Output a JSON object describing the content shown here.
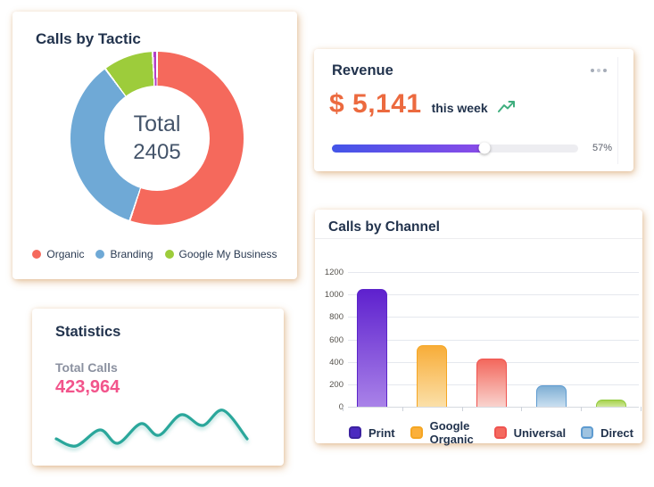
{
  "cards": {
    "tactic": {
      "title": "Calls by Tactic",
      "center_label": "Total",
      "center_value": "2405"
    },
    "revenue": {
      "title": "Revenue",
      "menu_icon": "ellipsis-menu",
      "amount": "$ 5,141",
      "period": "this week",
      "trend_icon": "trending-up",
      "progress_label": "57%",
      "progress_percent": 57,
      "fill_percent": 62,
      "progress_gradient": [
        "#4355E8",
        "#8A4BE8"
      ]
    },
    "statistics": {
      "title": "Statistics",
      "metric_label": "Total Calls",
      "metric_value": "423,964",
      "value_color": "#F2548B",
      "line_color": "#2AA79B"
    },
    "channel": {
      "title": "Calls by Channel"
    }
  },
  "chart_data": [
    {
      "id": "calls_by_tactic",
      "type": "pie",
      "donut": true,
      "title": "Calls by Tactic",
      "center_label": "Total",
      "total": 2405,
      "legend_position": "bottom",
      "slices": [
        {
          "label": "Organic",
          "value": 1325,
          "color": "#F5695C"
        },
        {
          "label": "Branding",
          "value": 835,
          "color": "#6FA9D6"
        },
        {
          "label": "Google My Business",
          "value": 225,
          "color": "#9DCC3B"
        },
        {
          "label": "",
          "value": 20,
          "color": "#B23FC6"
        }
      ]
    },
    {
      "id": "calls_by_channel",
      "type": "bar",
      "title": "Calls by Channel",
      "categories": [
        "Print",
        "Google Organic",
        "Universal",
        "Direct",
        ""
      ],
      "values": [
        1050,
        550,
        430,
        190,
        60
      ],
      "ylim": [
        0,
        1200
      ],
      "ytick_step": 200,
      "grid": true,
      "legend_position": "bottom",
      "bar_styles": [
        {
          "top": "#5E21CE",
          "bottom": "#A982E8",
          "border": "#5B24C9"
        },
        {
          "top": "#F8AD39",
          "bottom": "#FBE0A9",
          "border": "#F5A623"
        },
        {
          "top": "#F3685D",
          "bottom": "#F9D3CE",
          "border": "#EF5350"
        },
        {
          "top": "#7FAFD4",
          "bottom": "#CADFF0",
          "border": "#5E9BD0"
        },
        {
          "top": "#A8D24F",
          "bottom": "#CFE89A",
          "border": "#8FC93A"
        }
      ],
      "legend": [
        {
          "label": "Print",
          "fill": "#4B2AC0",
          "border": "#3C22A0"
        },
        {
          "label": "Google Organic",
          "fill": "#FBB03B",
          "border": "#F5A623"
        },
        {
          "label": "Universal",
          "fill": "#F4695E",
          "border": "#EF5350"
        },
        {
          "label": "Direct",
          "fill": "#9FC3E0",
          "border": "#5E9BD0"
        }
      ]
    },
    {
      "id": "statistics_sparkline",
      "type": "line",
      "color": "#2AA79B",
      "points": [
        [
          7,
          42
        ],
        [
          29,
          50
        ],
        [
          56,
          32
        ],
        [
          76,
          47
        ],
        [
          102,
          25
        ],
        [
          122,
          38
        ],
        [
          147,
          15
        ],
        [
          171,
          27
        ],
        [
          194,
          10
        ],
        [
          221,
          42
        ]
      ]
    }
  ]
}
